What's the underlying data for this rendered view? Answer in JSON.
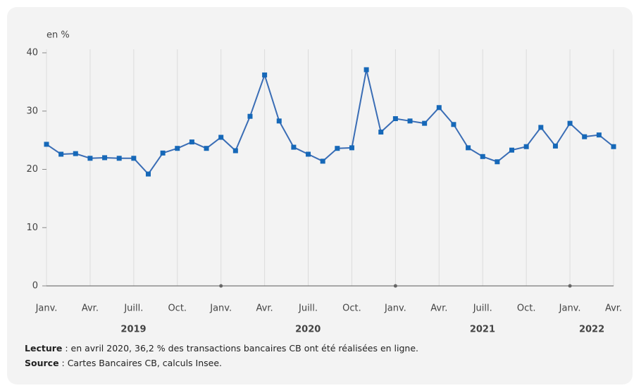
{
  "chart_data": {
    "type": "line",
    "y_label": "en %",
    "categories": [
      "Janv.",
      null,
      null,
      "Avr.",
      null,
      null,
      "Juill.",
      null,
      null,
      "Oct.",
      null,
      null,
      "Janv.",
      null,
      null,
      "Avr.",
      null,
      null,
      "Juill.",
      null,
      null,
      "Oct.",
      null,
      null,
      "Janv.",
      null,
      null,
      "Avr.",
      null,
      null,
      "Juill.",
      null,
      null,
      "Oct.",
      null,
      null,
      "Janv.",
      null,
      null,
      "Avr."
    ],
    "years": [
      "2019",
      "2020",
      "2021",
      "2022"
    ],
    "series": [
      {
        "name": null,
        "color": "#3a6db5",
        "marker_color": "#1668b8",
        "values": [
          24.3,
          22.6,
          22.7,
          21.9,
          22.0,
          21.9,
          21.9,
          19.2,
          22.8,
          23.6,
          24.7,
          23.6,
          25.5,
          23.2,
          29.1,
          36.2,
          28.3,
          23.8,
          22.6,
          21.4,
          23.6,
          23.7,
          37.1,
          26.4,
          28.7,
          28.3,
          27.9,
          30.6,
          27.7,
          23.7,
          22.2,
          21.3,
          23.3,
          23.9,
          27.2,
          24.0,
          27.9,
          25.6,
          25.9,
          23.9
        ]
      }
    ],
    "ylim": [
      0,
      40
    ],
    "yticks": [
      0,
      10,
      20,
      30,
      40
    ],
    "grid": true,
    "notes": [
      {
        "label": "Lecture",
        "text": " : en avril 2020, 36,2 % des transactions bancaires CB ont été réalisées en ligne."
      },
      {
        "label": "Source",
        "text": " : Cartes Bancaires CB, calculs Insee."
      }
    ]
  }
}
